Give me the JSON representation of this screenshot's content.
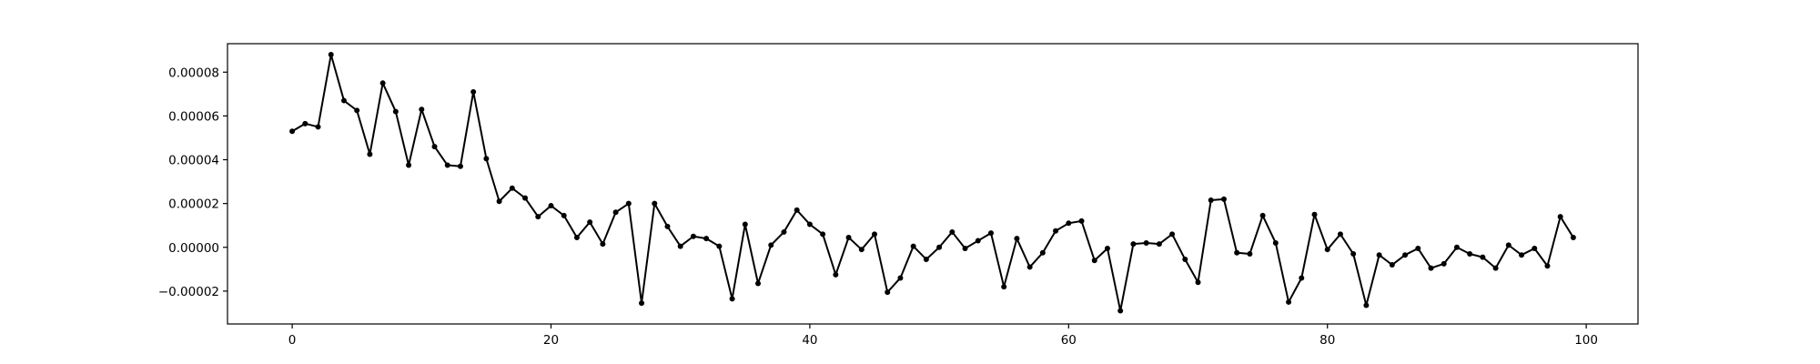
{
  "chart_data": {
    "type": "line",
    "title": "",
    "xlabel": "",
    "ylabel": "",
    "xlim": [
      -5,
      104
    ],
    "ylim": [
      -3.5e-05,
      9.3e-05
    ],
    "xticks": [
      0,
      20,
      40,
      60,
      80,
      100
    ],
    "xtick_labels": [
      "0",
      "20",
      "40",
      "60",
      "80",
      "100"
    ],
    "yticks": [
      -2e-05,
      0.0,
      2e-05,
      4e-05,
      6e-05,
      8e-05
    ],
    "ytick_labels": [
      "−0.00002",
      "0.00000",
      "0.00002",
      "0.00004",
      "0.00006",
      "0.00008"
    ],
    "grid": false,
    "legend": false,
    "series": [
      {
        "color": "#000000",
        "marker": "dot",
        "x": [
          0,
          1,
          2,
          3,
          4,
          5,
          6,
          7,
          8,
          9,
          10,
          11,
          12,
          13,
          14,
          15,
          16,
          17,
          18,
          19,
          20,
          21,
          22,
          23,
          24,
          25,
          26,
          27,
          28,
          29,
          30,
          31,
          32,
          33,
          34,
          35,
          36,
          37,
          38,
          39,
          40,
          41,
          42,
          43,
          44,
          45,
          46,
          47,
          48,
          49,
          50,
          51,
          52,
          53,
          54,
          55,
          56,
          57,
          58,
          59,
          60,
          61,
          62,
          63,
          64,
          65,
          66,
          67,
          68,
          69,
          70,
          71,
          72,
          73,
          74,
          75,
          76,
          77,
          78,
          79,
          80,
          81,
          82,
          83,
          84,
          85,
          86,
          87,
          88,
          89,
          90,
          91,
          92,
          93,
          94,
          95,
          96,
          97,
          98,
          99
        ],
        "values": [
          5.3e-05,
          5.65e-05,
          5.5e-05,
          8.8e-05,
          6.7e-05,
          6.25e-05,
          4.25e-05,
          7.5e-05,
          6.2e-05,
          3.75e-05,
          6.3e-05,
          4.6e-05,
          3.75e-05,
          3.7e-05,
          7.1e-05,
          4.05e-05,
          2.1e-05,
          2.7e-05,
          2.25e-05,
          1.4e-05,
          1.9e-05,
          1.45e-05,
          4.5e-06,
          1.15e-05,
          1.5e-06,
          1.6e-05,
          2e-05,
          -2.55e-05,
          2e-05,
          9.5e-06,
          5e-07,
          5e-06,
          4e-06,
          5e-07,
          -2.35e-05,
          1.05e-05,
          -1.65e-05,
          1e-06,
          7e-06,
          1.7e-05,
          1.05e-05,
          6e-06,
          -1.25e-05,
          4.5e-06,
          -1e-06,
          6e-06,
          -2.05e-05,
          -1.4e-05,
          5e-07,
          -5.5e-06,
          0.0,
          7e-06,
          -5e-07,
          3e-06,
          6.5e-06,
          -1.8e-05,
          4e-06,
          -9e-06,
          -2.5e-06,
          7.5e-06,
          1.1e-05,
          1.2e-05,
          -6e-06,
          -5e-07,
          -2.9e-05,
          1.5e-06,
          2e-06,
          1.5e-06,
          6e-06,
          -5.5e-06,
          -1.6e-05,
          2.15e-05,
          2.2e-05,
          -2.5e-06,
          -3e-06,
          1.45e-05,
          2e-06,
          -2.5e-05,
          -1.4e-05,
          1.5e-05,
          -1e-06,
          6e-06,
          -3e-06,
          -2.65e-05,
          -3.5e-06,
          -8e-06,
          -3.5e-06,
          -5e-07,
          -9.5e-06,
          -7.5e-06,
          0.0,
          -3e-06,
          -4.5e-06,
          -9.5e-06,
          1e-06,
          -3.5e-06,
          -5e-07,
          -8.5e-06,
          1.4e-05,
          4.5e-06
        ]
      }
    ]
  }
}
